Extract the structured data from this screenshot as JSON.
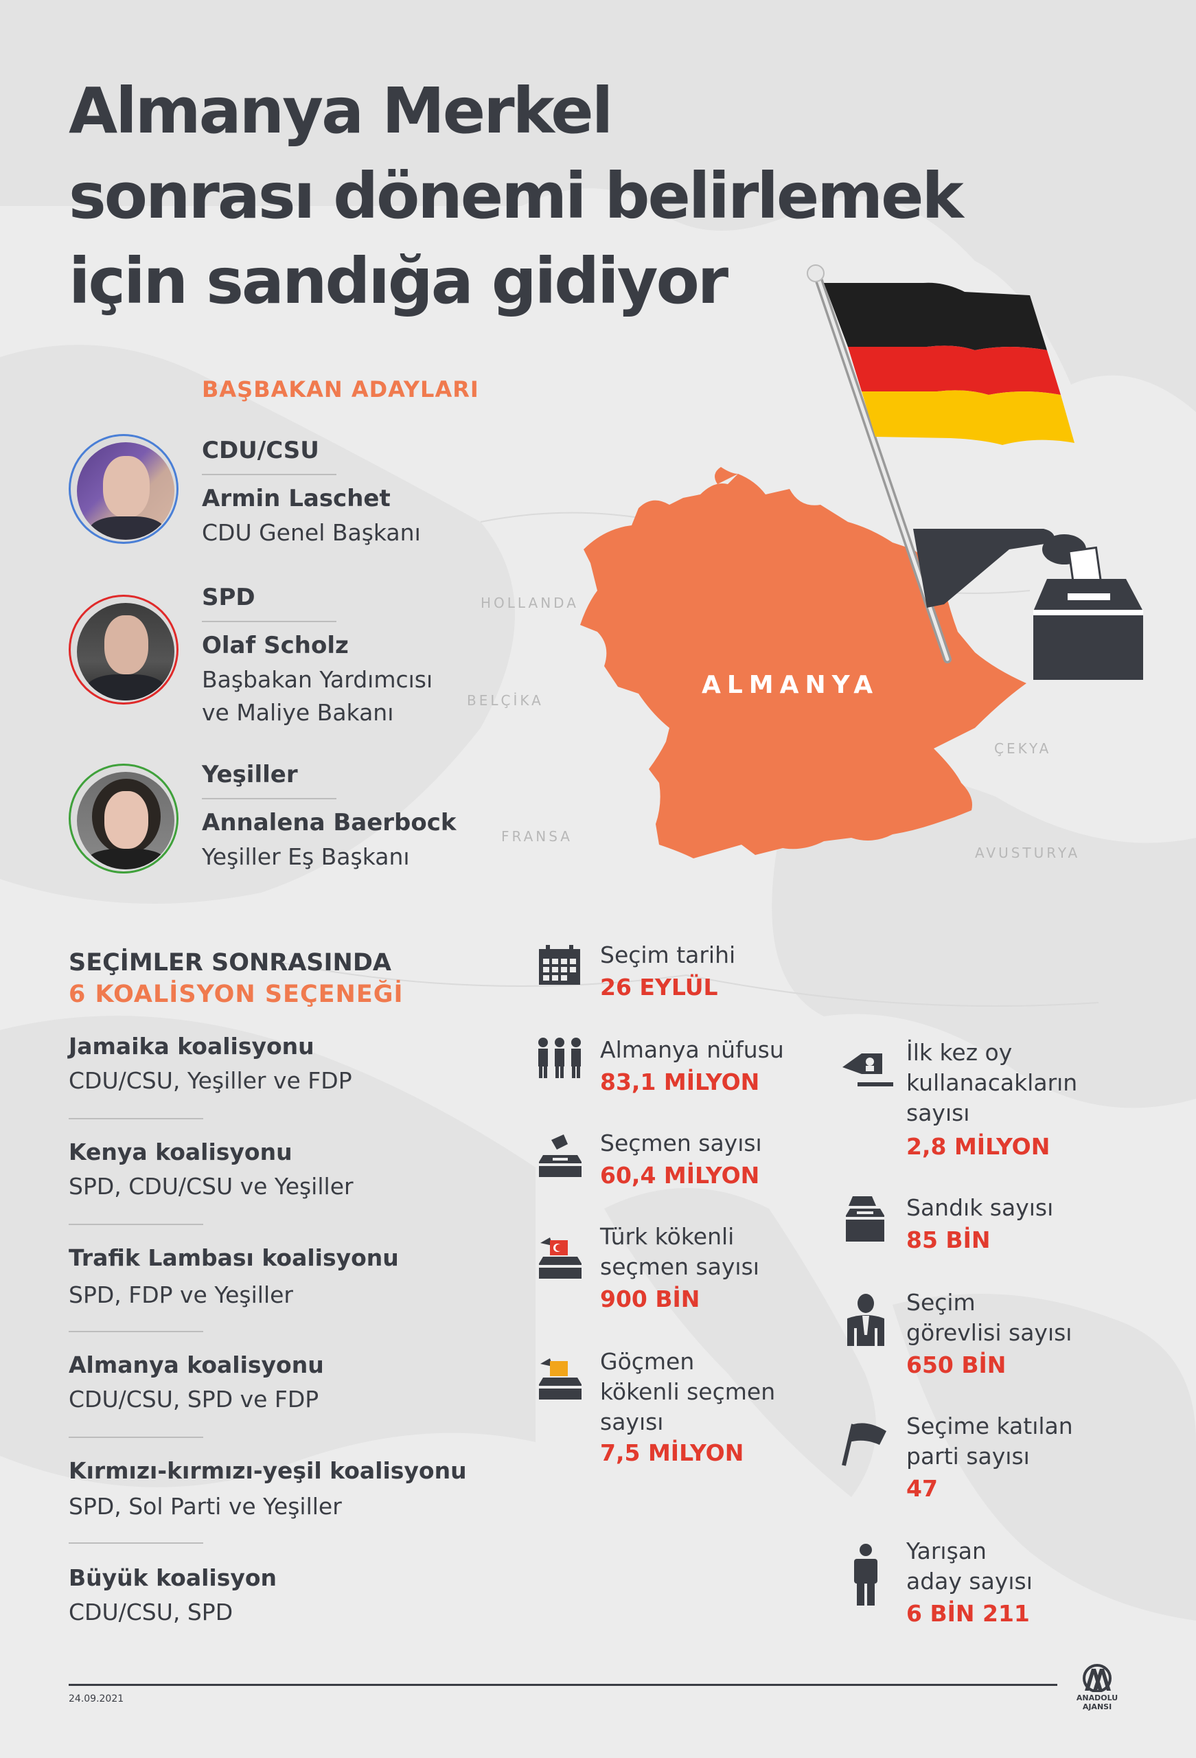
{
  "title": {
    "line1": "Almanya Merkel",
    "line2": "sonrası dönemi belirlemek",
    "line3": "için sandığa gidiyor"
  },
  "candidates": {
    "heading": "BAŞBAKAN ADAYLARI",
    "list": [
      {
        "party": "CDU/CSU",
        "name": "Armin Laschet",
        "role_line1": "CDU Genel Başkanı",
        "role_line2": "",
        "ring_color": "#4a7fd6"
      },
      {
        "party": "SPD",
        "name": "Olaf Scholz",
        "role_line1": "Başbakan Yardımcısı",
        "role_line2": "ve Maliye Bakanı",
        "ring_color": "#e02a2a"
      },
      {
        "party": "Yeşiller",
        "name": "Annalena Baerbock",
        "role_line1": "Yeşiller Eş Başkanı",
        "role_line2": "",
        "ring_color": "#3fa13b"
      }
    ]
  },
  "map": {
    "country": "ALMANYA",
    "neighbors": {
      "netherlands": "HOLLANDA",
      "belgium": "BELÇİKA",
      "france": "FRANSA",
      "czechia": "ÇEKYA",
      "austria": "AVUSTURYA"
    }
  },
  "coalitions": {
    "heading_line1": "SEÇİMLER SONRASINDA",
    "heading_line2": "6 KOALİSYON SEÇENEĞİ",
    "items": [
      {
        "name": "Jamaika koalisyonu",
        "parties": "CDU/CSU, Yeşiller ve FDP"
      },
      {
        "name": "Kenya koalisyonu",
        "parties": "SPD, CDU/CSU ve Yeşiller"
      },
      {
        "name": "Trafik Lambası koalisyonu",
        "parties": "SPD, FDP ve Yeşiller"
      },
      {
        "name": "Almanya koalisyonu",
        "parties": "CDU/CSU, SPD ve FDP"
      },
      {
        "name": "Kırmızı-kırmızı-yeşil koalisyonu",
        "parties": "SPD, Sol Parti ve Yeşiller"
      },
      {
        "name": "Büyük koalisyon",
        "parties": "CDU/CSU, SPD"
      }
    ]
  },
  "stats_left": [
    {
      "icon": "calendar-icon",
      "label_line1": "Seçim tarihi",
      "label_line2": "",
      "value": "26 EYLÜL"
    },
    {
      "icon": "population-icon",
      "label_line1": "Almanya nüfusu",
      "label_line2": "",
      "value": "83,1 MİLYON"
    },
    {
      "icon": "ballot-box-icon",
      "label_line1": "Seçmen sayısı",
      "label_line2": "",
      "value": "60,4 MİLYON"
    },
    {
      "icon": "turkish-voter-icon",
      "label_line1": "Türk kökenli",
      "label_line2": "seçmen sayısı",
      "value": "900 BİN"
    },
    {
      "icon": "migrant-voter-icon",
      "label_line1": "Göçmen",
      "label_line2": "kökenli seçmen",
      "label_line3": "sayısı",
      "value": "7,5 MİLYON"
    }
  ],
  "stats_right": [
    {
      "icon": "first-time-voter-icon",
      "label_line1": "İlk kez oy",
      "label_line2": "kullanacakların",
      "label_line3": "sayısı",
      "value": "2,8 MİLYON"
    },
    {
      "icon": "box-icon",
      "label_line1": "Sandık sayısı",
      "value": "85 BİN"
    },
    {
      "icon": "official-icon",
      "label_line1": "Seçim",
      "label_line2": "görevlisi sayısı",
      "value": "650 BİN"
    },
    {
      "icon": "flag-icon",
      "label_line1": "Seçime katılan",
      "label_line2": "parti sayısı",
      "value": "47"
    },
    {
      "icon": "person-icon",
      "label_line1": "Yarışan",
      "label_line2": "aday sayısı",
      "value": "6 BİN 211"
    }
  ],
  "footer": {
    "date": "24.09.2021",
    "agency": "ANADOLU AJANSI"
  },
  "colors": {
    "accent_orange": "#f07a4e",
    "value_red": "#e23b2e",
    "text_dark": "#3a3d44",
    "map_orange": "#f07a4e"
  }
}
